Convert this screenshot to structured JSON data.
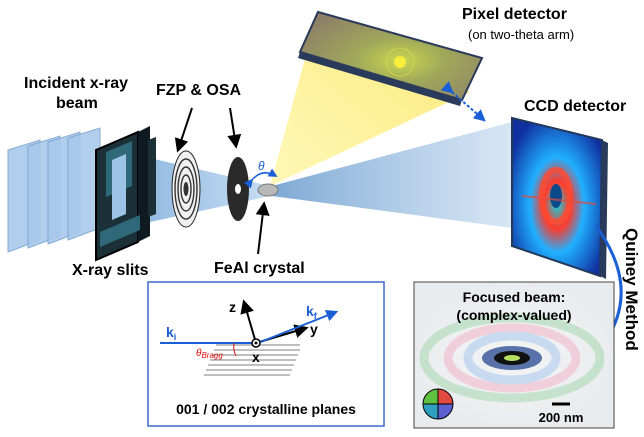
{
  "labels": {
    "incident_beam_line1": "Incident x-ray",
    "incident_beam_line2": "beam",
    "fzp_osa": "FZP & OSA",
    "pixel_detector": "Pixel detector",
    "pixel_detector_sub": "(on two-theta arm)",
    "ccd_detector": "CCD detector",
    "xray_slits": "X-ray slits",
    "feal_crystal": "FeAl crystal",
    "theta": "θ",
    "quiney_method": "Quiney Method"
  },
  "inset_geometry": {
    "axis_z": "z",
    "axis_y": "y",
    "axis_x": "x",
    "k_i": "k",
    "k_i_sub": "i",
    "k_f": "k",
    "k_f_sub": "f",
    "theta_bragg": "θ",
    "theta_bragg_sub": "Bragg",
    "caption": "001 / 002 crystalline planes"
  },
  "inset_focus": {
    "title_line1": "Focused beam:",
    "title_line2": "(complex-valued)",
    "scale_bar": "200 nm"
  },
  "colors": {
    "beam": "#9cc3e6",
    "accent_blue": "#1a5fd6",
    "bragg_red": "#d11",
    "inset_border": "#3a6ad1"
  }
}
